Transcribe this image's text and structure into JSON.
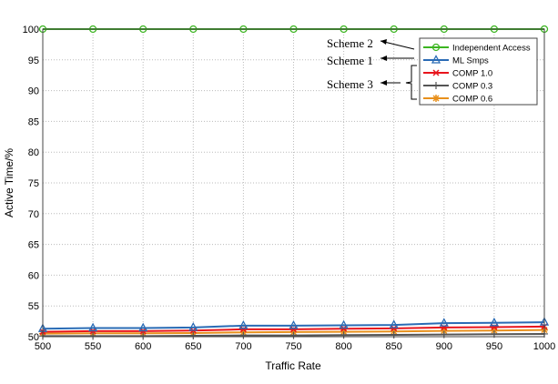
{
  "chart_data": {
    "type": "line",
    "title": "",
    "xlabel": "Traffic Rate",
    "ylabel": "Active Time/%",
    "xlim": [
      500,
      1000
    ],
    "ylim": [
      50,
      100
    ],
    "grid": true,
    "legend_position": "top-right",
    "x": [
      500,
      550,
      600,
      650,
      700,
      750,
      800,
      850,
      900,
      950,
      1000
    ],
    "xticks": [
      "500",
      "550",
      "600",
      "650",
      "700",
      "750",
      "800",
      "850",
      "900",
      "950",
      "1000"
    ],
    "yticks": [
      "50",
      "55",
      "60",
      "65",
      "70",
      "75",
      "80",
      "85",
      "90",
      "95",
      "100"
    ],
    "series": [
      {
        "name": "Independent Access",
        "color": "#3cb521",
        "marker": "circle",
        "values": [
          100,
          100,
          100,
          100,
          100,
          100,
          100,
          100,
          100,
          100,
          100
        ]
      },
      {
        "name": "ML Smps",
        "color": "#2a6bb5",
        "marker": "triangle",
        "values": [
          51.3,
          51.4,
          51.4,
          51.5,
          51.8,
          51.8,
          51.85,
          51.9,
          52.2,
          52.25,
          52.35
        ]
      },
      {
        "name": "COMP 1.0",
        "color": "#e8141c",
        "marker": "x",
        "values": [
          50.8,
          50.9,
          50.9,
          51.0,
          51.2,
          51.2,
          51.3,
          51.35,
          51.5,
          51.55,
          51.65
        ]
      },
      {
        "name": "COMP 0.3",
        "color": "#555555",
        "marker": "plus",
        "values": [
          50.1,
          50.1,
          50.1,
          50.15,
          50.2,
          50.2,
          50.25,
          50.3,
          50.35,
          50.4,
          50.45
        ]
      },
      {
        "name": "COMP 0.6",
        "color": "#e8901c",
        "marker": "asterisk",
        "values": [
          50.5,
          50.55,
          50.55,
          50.6,
          50.7,
          50.75,
          50.8,
          50.85,
          50.95,
          51.0,
          51.1
        ]
      }
    ],
    "annotations": [
      "Scheme 2",
      "Scheme 1",
      "Scheme 3"
    ]
  }
}
